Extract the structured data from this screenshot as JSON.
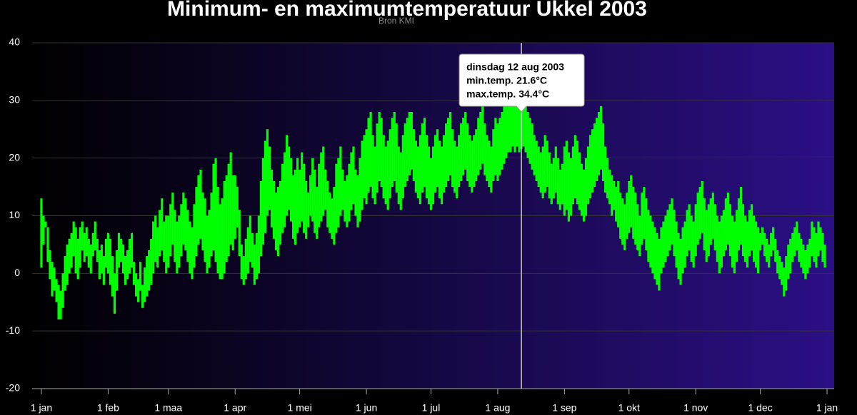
{
  "chart_data": {
    "type": "columnrange",
    "title": "Minimum- en maximumtemperatuur Ukkel 2003",
    "subtitle": "Bron KMI",
    "color": "#00ff00",
    "grid": true,
    "ylim": [
      -20,
      40
    ],
    "yticks": [
      -20,
      -10,
      0,
      10,
      20,
      30,
      40
    ],
    "xlim": [
      -4.3,
      368.3
    ],
    "xticks": [
      {
        "value": 0,
        "label": "1 jan"
      },
      {
        "value": 31,
        "label": "1 feb"
      },
      {
        "value": 59,
        "label": "1 maa"
      },
      {
        "value": 90,
        "label": "1 apr"
      },
      {
        "value": 120,
        "label": "1 mei"
      },
      {
        "value": 151,
        "label": "1 jun"
      },
      {
        "value": 181,
        "label": "1 jul"
      },
      {
        "value": 212,
        "label": "1 aug"
      },
      {
        "value": 243,
        "label": "1 sep"
      },
      {
        "value": 273,
        "label": "1 okt"
      },
      {
        "value": 304,
        "label": "1 nov"
      },
      {
        "value": 334,
        "label": "1 dec"
      },
      {
        "value": 365,
        "label": "1 jan"
      }
    ],
    "tooltip": {
      "x": 223,
      "title": "dinsdag 12 aug 2003",
      "lines": [
        "min.temp. 21.6°C",
        "max.temp. 34.4°C"
      ]
    },
    "x": [
      0,
      1,
      2,
      3,
      4,
      5,
      6,
      7,
      8,
      9,
      10,
      11,
      12,
      13,
      14,
      15,
      16,
      17,
      18,
      19,
      20,
      21,
      22,
      23,
      24,
      25,
      26,
      27,
      28,
      29,
      30,
      31,
      32,
      33,
      34,
      35,
      36,
      37,
      38,
      39,
      40,
      41,
      42,
      43,
      44,
      45,
      46,
      47,
      48,
      49,
      50,
      51,
      52,
      53,
      54,
      55,
      56,
      57,
      58,
      59,
      60,
      61,
      62,
      63,
      64,
      65,
      66,
      67,
      68,
      69,
      70,
      71,
      72,
      73,
      74,
      75,
      76,
      77,
      78,
      79,
      80,
      81,
      82,
      83,
      84,
      85,
      86,
      87,
      88,
      89,
      90,
      91,
      92,
      93,
      94,
      95,
      96,
      97,
      98,
      99,
      100,
      101,
      102,
      103,
      104,
      105,
      106,
      107,
      108,
      109,
      110,
      111,
      112,
      113,
      114,
      115,
      116,
      117,
      118,
      119,
      120,
      121,
      122,
      123,
      124,
      125,
      126,
      127,
      128,
      129,
      130,
      131,
      132,
      133,
      134,
      135,
      136,
      137,
      138,
      139,
      140,
      141,
      142,
      143,
      144,
      145,
      146,
      147,
      148,
      149,
      150,
      151,
      152,
      153,
      154,
      155,
      156,
      157,
      158,
      159,
      160,
      161,
      162,
      163,
      164,
      165,
      166,
      167,
      168,
      169,
      170,
      171,
      172,
      173,
      174,
      175,
      176,
      177,
      178,
      179,
      180,
      181,
      182,
      183,
      184,
      185,
      186,
      187,
      188,
      189,
      190,
      191,
      192,
      193,
      194,
      195,
      196,
      197,
      198,
      199,
      200,
      201,
      202,
      203,
      204,
      205,
      206,
      207,
      208,
      209,
      210,
      211,
      212,
      213,
      214,
      215,
      216,
      217,
      218,
      219,
      220,
      221,
      222,
      223,
      224,
      225,
      226,
      227,
      228,
      229,
      230,
      231,
      232,
      233,
      234,
      235,
      236,
      237,
      238,
      239,
      240,
      241,
      242,
      243,
      244,
      245,
      246,
      247,
      248,
      249,
      250,
      251,
      252,
      253,
      254,
      255,
      256,
      257,
      258,
      259,
      260,
      261,
      262,
      263,
      264,
      265,
      266,
      267,
      268,
      269,
      270,
      271,
      272,
      273,
      274,
      275,
      276,
      277,
      278,
      279,
      280,
      281,
      282,
      283,
      284,
      285,
      286,
      287,
      288,
      289,
      290,
      291,
      292,
      293,
      294,
      295,
      296,
      297,
      298,
      299,
      300,
      301,
      302,
      303,
      304,
      305,
      306,
      307,
      308,
      309,
      310,
      311,
      312,
      313,
      314,
      315,
      316,
      317,
      318,
      319,
      320,
      321,
      322,
      323,
      324,
      325,
      326,
      327,
      328,
      329,
      330,
      331,
      332,
      333,
      334,
      335,
      336,
      337,
      338,
      339,
      340,
      341,
      342,
      343,
      344,
      345,
      346,
      347,
      348,
      349,
      350,
      351,
      352,
      353,
      354,
      355,
      356,
      357,
      358,
      359,
      360,
      361,
      362,
      363,
      364
    ],
    "low": [
      1,
      5,
      8,
      2,
      -1,
      -4,
      -3,
      -5,
      -8,
      -8,
      -6,
      -3,
      -2,
      0,
      1,
      3,
      0,
      -1,
      1,
      4,
      2,
      3,
      1,
      0,
      3,
      4,
      2,
      -1,
      0,
      -2,
      1,
      0,
      -2,
      -4,
      -7,
      -3,
      1,
      2,
      0,
      -2,
      -1,
      0,
      1,
      -2,
      -4,
      -5,
      -3,
      -6,
      -5,
      -4,
      -3,
      -2,
      0,
      2,
      1,
      3,
      4,
      2,
      0,
      1,
      3,
      5,
      2,
      0,
      1,
      3,
      5,
      4,
      2,
      0,
      -1,
      1,
      3,
      5,
      6,
      4,
      2,
      0,
      1,
      3,
      4,
      2,
      0,
      -1,
      -1,
      0,
      2,
      3,
      5,
      4,
      6,
      8,
      3,
      -1,
      -2,
      -1,
      0,
      2,
      1,
      -2,
      -1,
      0,
      3,
      5,
      7,
      10,
      11,
      8,
      6,
      4,
      3,
      5,
      7,
      8,
      10,
      11,
      9,
      6,
      5,
      7,
      8,
      9,
      7,
      6,
      8,
      10,
      9,
      7,
      6,
      8,
      9,
      10,
      11,
      8,
      7,
      6,
      5,
      7,
      8,
      10,
      11,
      9,
      8,
      9,
      11,
      12,
      10,
      8,
      9,
      11,
      13,
      12,
      14,
      15,
      13,
      12,
      14,
      16,
      15,
      13,
      12,
      11,
      13,
      15,
      16,
      14,
      12,
      11,
      13,
      15,
      16,
      17,
      18,
      16,
      14,
      13,
      12,
      14,
      15,
      13,
      12,
      11,
      12,
      14,
      15,
      13,
      12,
      14,
      15,
      16,
      17,
      15,
      14,
      13,
      15,
      16,
      17,
      18,
      16,
      15,
      14,
      15,
      16,
      17,
      18,
      19,
      17,
      16,
      15,
      14,
      16,
      17,
      16,
      17,
      18,
      19,
      20,
      21,
      21,
      22,
      21,
      22,
      21,
      21.6,
      22,
      21,
      20,
      19,
      18,
      17,
      16,
      15,
      14,
      13,
      14,
      15,
      13,
      12,
      13,
      14,
      12,
      11,
      12,
      10,
      11,
      9,
      10,
      12,
      13,
      12,
      11,
      10,
      9,
      10,
      12,
      13,
      14,
      15,
      16,
      17,
      18,
      16,
      14,
      13,
      12,
      10,
      11,
      9,
      8,
      6,
      5,
      4,
      6,
      7,
      8,
      6,
      5,
      4,
      3,
      5,
      6,
      4,
      2,
      1,
      0,
      -1,
      -2,
      -3,
      0,
      1,
      2,
      3,
      4,
      5,
      3,
      1,
      -1,
      -2,
      0,
      1,
      3,
      4,
      2,
      1,
      3,
      5,
      6,
      7,
      4,
      2,
      3,
      5,
      6,
      4,
      2,
      0,
      1,
      3,
      4,
      5,
      3,
      1,
      0,
      2,
      4,
      5,
      3,
      2,
      1,
      3,
      4,
      2,
      1,
      0,
      4,
      5,
      3,
      2,
      1,
      3,
      4,
      2,
      0,
      -1,
      -2,
      -4,
      -3,
      -1,
      0,
      2,
      3,
      4,
      2,
      1,
      0,
      -1,
      0,
      1,
      3,
      2,
      1,
      3,
      4,
      2,
      1
    ],
    "high": [
      13,
      10,
      9,
      8,
      4,
      2,
      1,
      -1,
      -2,
      -3,
      0,
      3,
      5,
      6,
      7,
      9,
      8,
      6,
      8,
      9,
      7,
      8,
      6,
      5,
      7,
      9,
      6,
      4,
      5,
      3,
      6,
      7,
      6,
      3,
      0,
      4,
      7,
      6,
      5,
      3,
      4,
      6,
      7,
      2,
      0,
      -1,
      2,
      -2,
      1,
      3,
      4,
      6,
      9,
      10,
      8,
      11,
      13,
      9,
      10,
      10,
      12,
      14,
      11,
      9,
      10,
      12,
      14,
      13,
      11,
      9,
      8,
      12,
      15,
      17,
      18,
      14,
      13,
      10,
      11,
      14,
      19,
      20,
      15,
      12,
      13,
      16,
      17,
      19,
      21,
      17,
      17,
      15,
      11,
      5,
      3,
      6,
      8,
      10,
      7,
      5,
      7,
      10,
      16,
      20,
      23,
      25,
      22,
      18,
      16,
      14,
      15,
      16,
      19,
      21,
      24,
      22,
      20,
      17,
      18,
      20,
      18,
      21,
      19,
      16,
      14,
      17,
      20,
      18,
      15,
      19,
      21,
      22,
      18,
      16,
      14,
      13,
      15,
      19,
      20,
      22,
      18,
      16,
      17,
      19,
      21,
      22,
      18,
      17,
      20,
      23,
      24,
      25,
      27,
      28,
      24,
      22,
      26,
      28,
      27,
      24,
      22,
      23,
      25,
      27,
      28,
      26,
      22,
      21,
      24,
      26,
      27,
      28,
      28,
      25,
      23,
      22,
      24,
      26,
      27,
      24,
      22,
      20,
      22,
      24,
      25,
      23,
      22,
      24,
      26,
      27,
      28,
      25,
      23,
      22,
      24,
      26,
      27,
      28,
      26,
      24,
      23,
      24,
      25,
      27,
      28,
      29,
      26,
      24,
      23,
      22,
      25,
      27,
      26,
      27,
      28,
      29,
      30,
      30,
      29,
      31,
      30,
      32,
      33,
      34.4,
      32,
      30,
      28,
      27,
      26,
      24,
      23,
      22,
      21,
      22,
      24,
      23,
      21,
      19,
      20,
      22,
      20,
      18,
      19,
      22,
      23,
      21,
      20,
      22,
      24,
      23,
      21,
      19,
      18,
      20,
      22,
      24,
      25,
      26,
      27,
      28,
      29,
      26,
      22,
      20,
      18,
      17,
      16,
      15,
      16,
      14,
      13,
      12,
      14,
      16,
      17,
      15,
      14,
      12,
      10,
      14,
      15,
      13,
      11,
      10,
      9,
      8,
      7,
      6,
      8,
      9,
      10,
      11,
      12,
      13,
      11,
      9,
      7,
      6,
      8,
      9,
      11,
      12,
      10,
      9,
      12,
      14,
      15,
      16,
      13,
      11,
      12,
      13,
      14,
      12,
      10,
      9,
      10,
      11,
      13,
      14,
      12,
      10,
      9,
      11,
      13,
      15,
      12,
      10,
      9,
      11,
      12,
      10,
      9,
      8,
      7,
      8,
      7,
      6,
      5,
      7,
      8,
      6,
      4,
      3,
      2,
      1,
      3,
      5,
      6,
      7,
      8,
      9,
      7,
      6,
      5,
      4,
      5,
      6,
      9,
      8,
      7,
      9,
      8,
      7,
      5
    ]
  }
}
